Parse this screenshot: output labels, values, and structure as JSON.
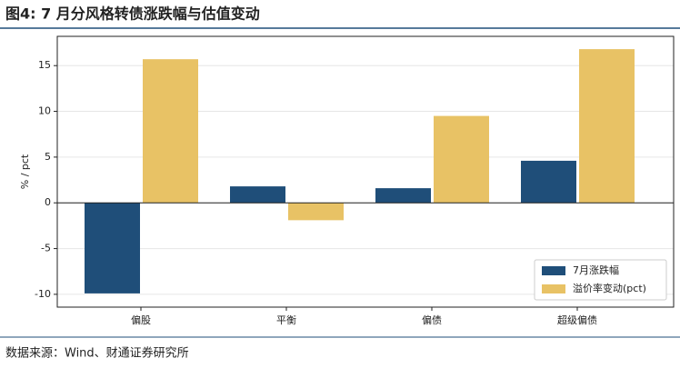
{
  "title": "图4: 7 月分风格转债涨跌幅与估值变动",
  "source": "数据来源：Wind、财通证券研究所",
  "chart_data": {
    "type": "bar",
    "y_label": "% / pct",
    "categories": [
      "偏股",
      "平衡",
      "偏债",
      "超级偏债"
    ],
    "series": [
      {
        "name": "7月涨跌幅",
        "color": "#1f4e79",
        "values": [
          -9.9,
          1.8,
          1.6,
          4.6
        ]
      },
      {
        "name": "溢价率变动(pct)",
        "color": "#e8c265",
        "values": [
          15.7,
          -1.9,
          9.5,
          16.8
        ]
      }
    ],
    "ylim": [
      -11.4,
      18.2
    ],
    "yticks": [
      -10,
      -5,
      0,
      5,
      10,
      15
    ],
    "grid": true,
    "legend": "lower right"
  }
}
